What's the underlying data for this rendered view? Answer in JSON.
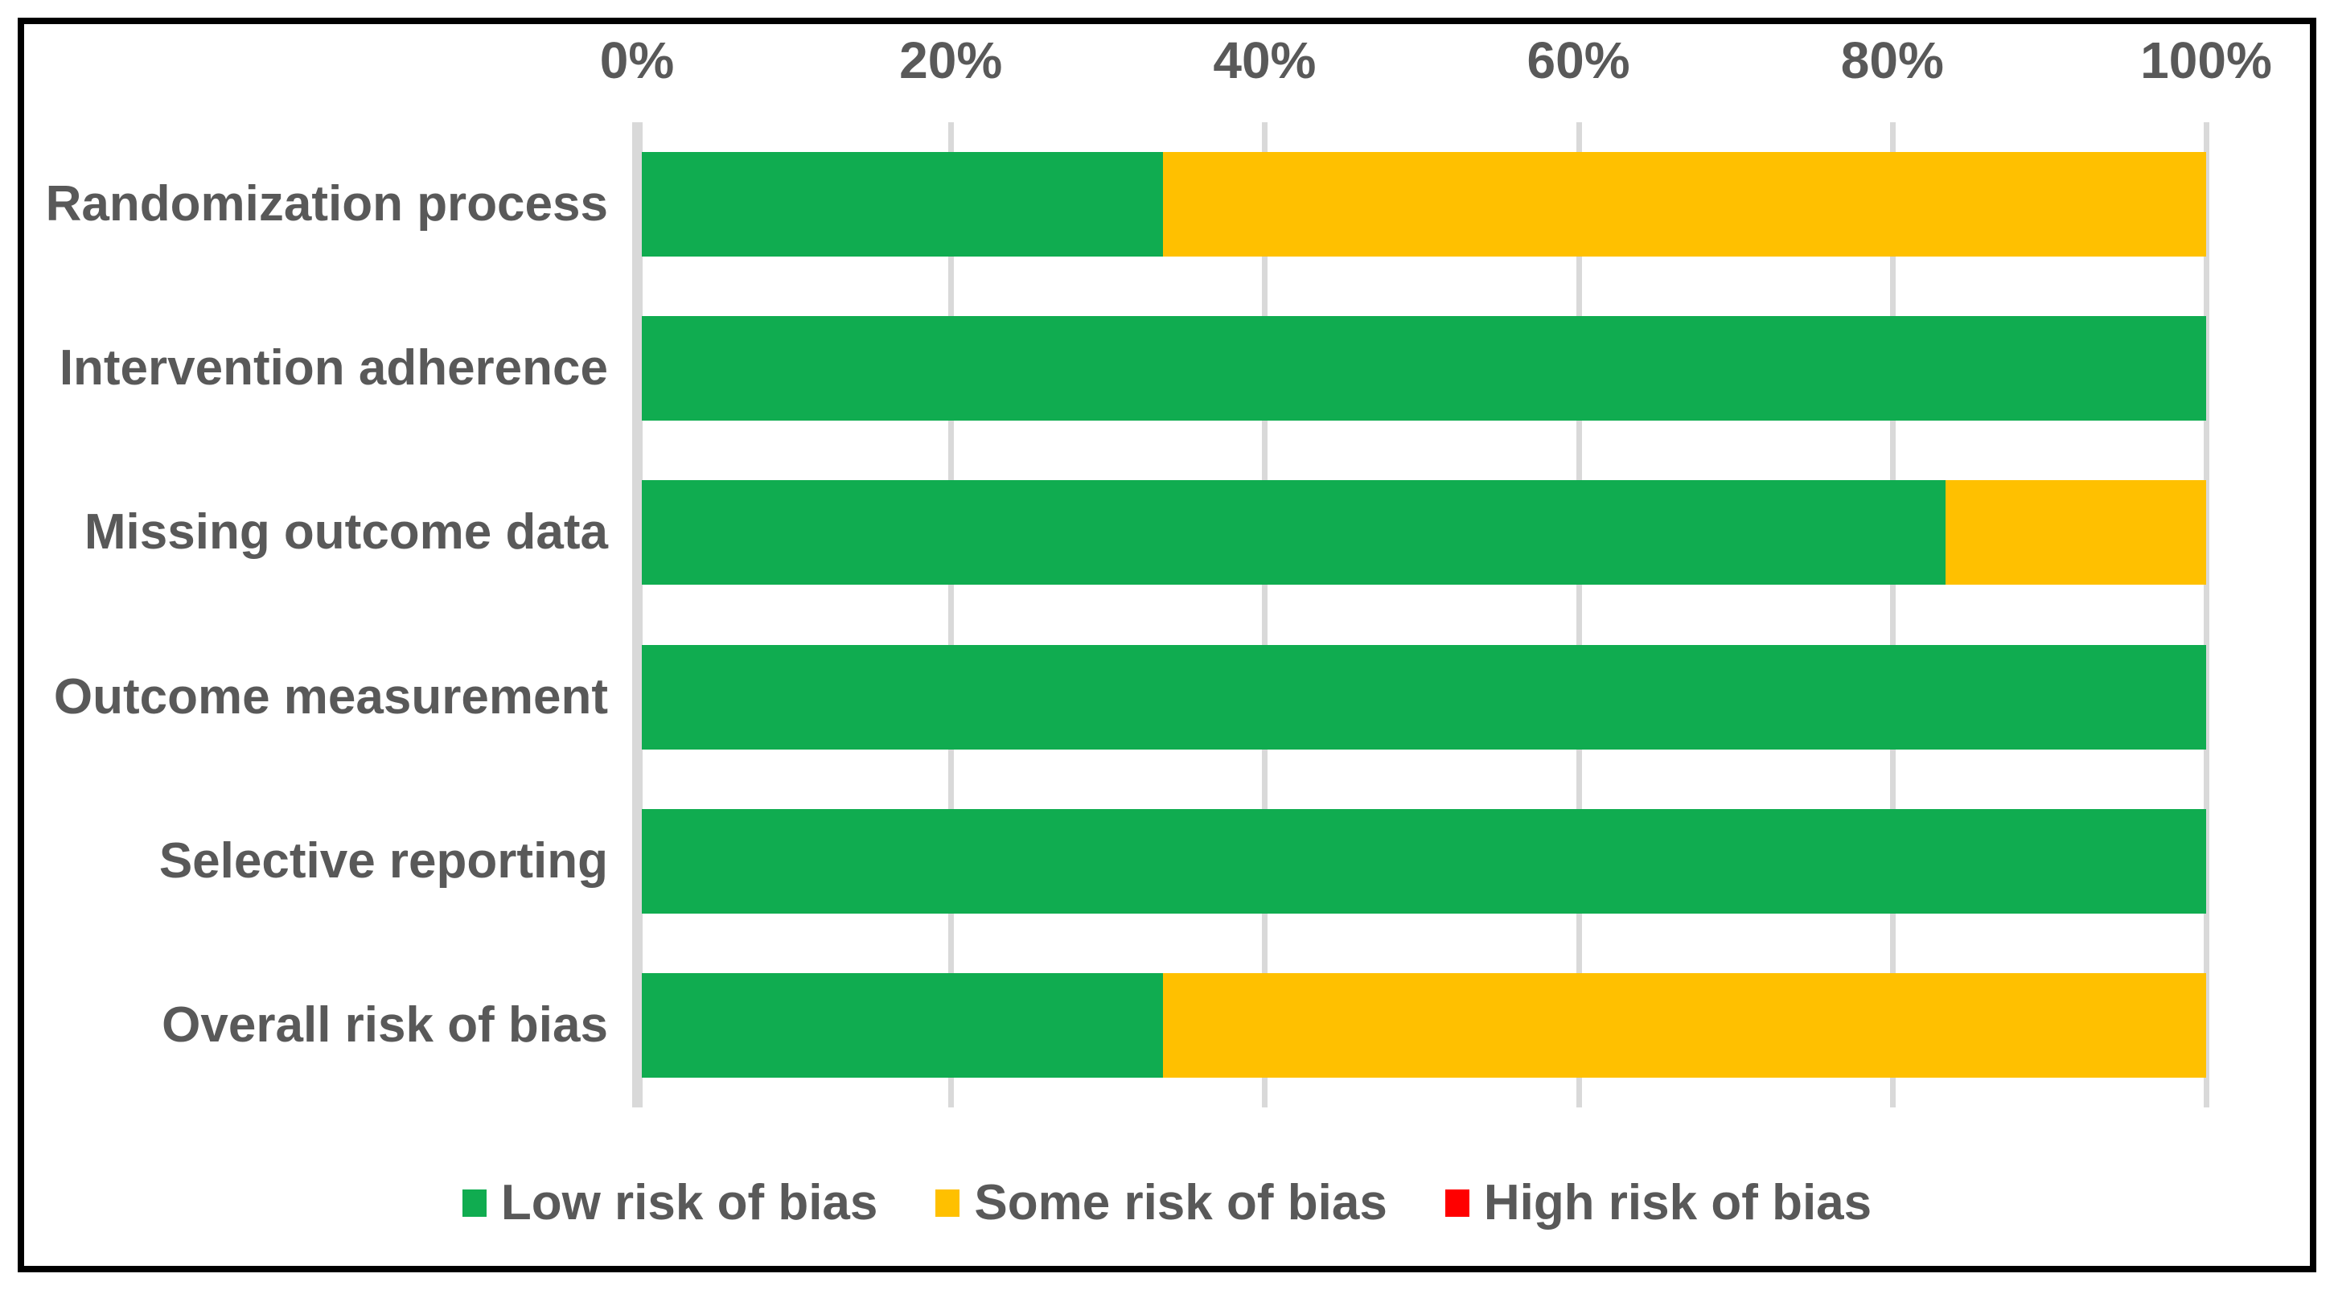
{
  "figure": {
    "background": "#FFFFFF",
    "border_color": "#000000",
    "text_color": "#595959"
  },
  "chart_data": {
    "type": "bar",
    "subtype": "horizontal-stacked-100percent",
    "title": "",
    "xlabel": "",
    "ylabel": "",
    "x_axis": {
      "position": "top",
      "range": [
        0,
        100
      ],
      "ticks": [
        "0%",
        "20%",
        "40%",
        "60%",
        "80%",
        "100%"
      ],
      "gridlines": true,
      "gridline_color": "#D9D9D9"
    },
    "categories": [
      "Randomization process",
      "Intervention adherence",
      "Missing outcome data",
      "Outcome measurement",
      "Selective reporting",
      "Overall risk of bias"
    ],
    "series": [
      {
        "name": "Low risk of bias",
        "color": "#10AC50",
        "values": [
          33.333,
          100,
          83.333,
          100,
          100,
          33.333
        ]
      },
      {
        "name": "Some risk of bias",
        "color": "#FFC000",
        "values": [
          66.667,
          0,
          16.667,
          0,
          0,
          66.667
        ]
      },
      {
        "name": "High risk of bias",
        "color": "#FF0000",
        "values": [
          0,
          0,
          0,
          0,
          0,
          0
        ]
      }
    ],
    "legend": {
      "position": "bottom",
      "labels": [
        "Low risk of bias",
        "Some risk of bias",
        "High risk of bias"
      ]
    }
  }
}
